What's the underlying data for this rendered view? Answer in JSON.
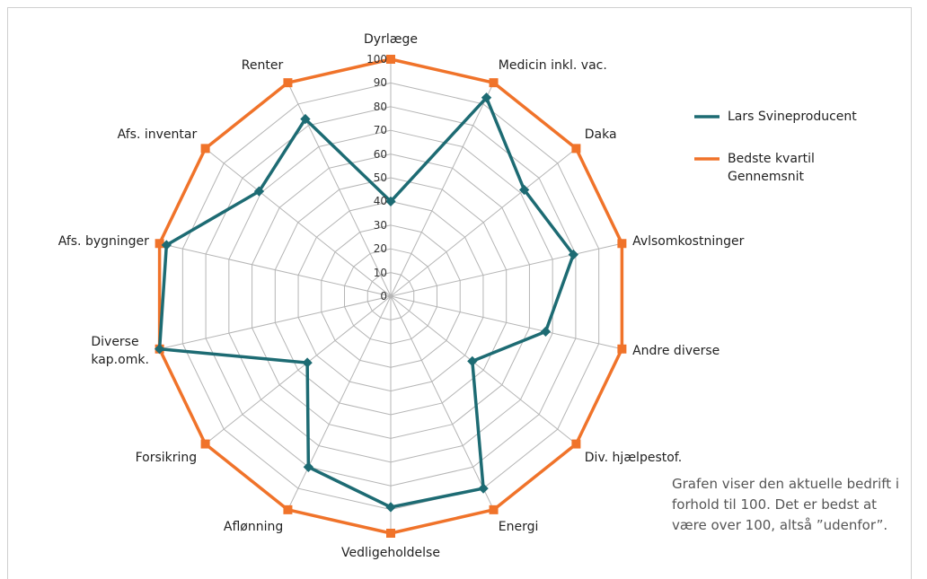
{
  "chart_data": {
    "type": "radar",
    "categories": [
      "Dyrlæge",
      "Medicin inkl. vac.",
      "Daka",
      "Avlsomkostninger",
      "Andre diverse",
      "Div. hjælpestof.",
      "Energi",
      "Vedligeholdelse",
      "Aflønning",
      "Forsikring",
      "Diverse\nkap.omk.",
      "Afs. bygninger",
      "Afs. inventar",
      "Renter"
    ],
    "series": [
      {
        "name": "Lars Svineproducent",
        "color": "#1d6b73",
        "values": [
          40,
          93,
          72,
          79,
          67,
          44,
          90,
          89,
          80,
          45,
          100,
          97,
          71,
          83
        ]
      },
      {
        "name": "Bedste kvartil\nGennemsnit",
        "color": "#f0732a",
        "values": [
          100,
          100,
          100,
          100,
          100,
          100,
          100,
          100,
          100,
          100,
          100,
          100,
          100,
          100
        ]
      }
    ],
    "ylim": [
      0,
      100
    ],
    "yticks": [
      0,
      10,
      20,
      30,
      40,
      50,
      60,
      70,
      80,
      90,
      100
    ],
    "grid": true,
    "legend": "right",
    "annotation": "Grafen viser den aktuelle bedrift i forhold til 100. Det er bedst at være over 100, altså ”udenfor”."
  }
}
